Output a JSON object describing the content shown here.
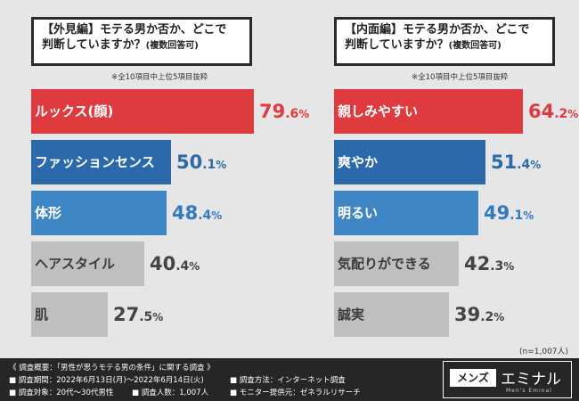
{
  "chart_data": [
    {
      "type": "bar",
      "orientation": "horizontal",
      "title_line1": "【外見編】モテる男か否か、どこで",
      "title_line2": "判断していますか？",
      "title_suffix": "(複数回答可)",
      "note": "※全10項目中上位5項目抜粋",
      "unit": "%",
      "xlim": [
        0,
        100
      ],
      "categories": [
        "ルックス(顔)",
        "ファッションセンス",
        "体形",
        "ヘアスタイル",
        "肌"
      ],
      "values": [
        79.6,
        50.1,
        48.4,
        40.4,
        27.5
      ],
      "value_parts": [
        [
          "79",
          ".6",
          "%"
        ],
        [
          "50",
          ".1",
          "%"
        ],
        [
          "48",
          ".4",
          "%"
        ],
        [
          "40",
          ".4",
          "%"
        ],
        [
          "27",
          ".5",
          "%"
        ]
      ],
      "colors": [
        "#de3b3f",
        "#2a6aab",
        "#3f86c4",
        "#bfbfbf",
        "#bfbfbf"
      ],
      "value_colors": [
        "#de3b3f",
        "#2a6aab",
        "#2f7ac0",
        "#444444",
        "#444444"
      ]
    },
    {
      "type": "bar",
      "orientation": "horizontal",
      "title_line1": "【内面編】モテる男か否か、どこで",
      "title_line2": "判断していますか？",
      "title_suffix": "(複数回答可)",
      "note": "※全10項目中上位5項目抜粋",
      "unit": "%",
      "xlim": [
        0,
        100
      ],
      "categories": [
        "親しみやすい",
        "爽やか",
        "明るい",
        "気配りができる",
        "誠実"
      ],
      "values": [
        64.2,
        51.4,
        49.1,
        42.3,
        39.2
      ],
      "value_parts": [
        [
          "64",
          ".2",
          "%"
        ],
        [
          "51",
          ".4",
          "%"
        ],
        [
          "49",
          ".1",
          "%"
        ],
        [
          "42",
          ".3",
          "%"
        ],
        [
          "39",
          ".2",
          "%"
        ]
      ],
      "colors": [
        "#de3b3f",
        "#2a6aab",
        "#3f86c4",
        "#bfbfbf",
        "#bfbfbf"
      ],
      "value_colors": [
        "#de3b3f",
        "#2a6aab",
        "#2f7ac0",
        "#444444",
        "#444444"
      ]
    }
  ],
  "sample_count": "(n=1,007人)",
  "footer": {
    "title": "《 調査概要：「男性が思うモテる男の条件」に関する調査 》",
    "period": "■ 調査期間：2022年6月13日(月)～2022年6月14日(火)",
    "target": "■ 調査対象：20代～30代男性",
    "people": "■ 調査人数：1,007人",
    "method": "■ 調査方法：インターネット調査",
    "provider": "■ モニター提供元：ゼネラルリサーチ"
  },
  "logo": {
    "mens": "メンズ",
    "main": "エミナル",
    "sub": "Men's Eminal"
  }
}
